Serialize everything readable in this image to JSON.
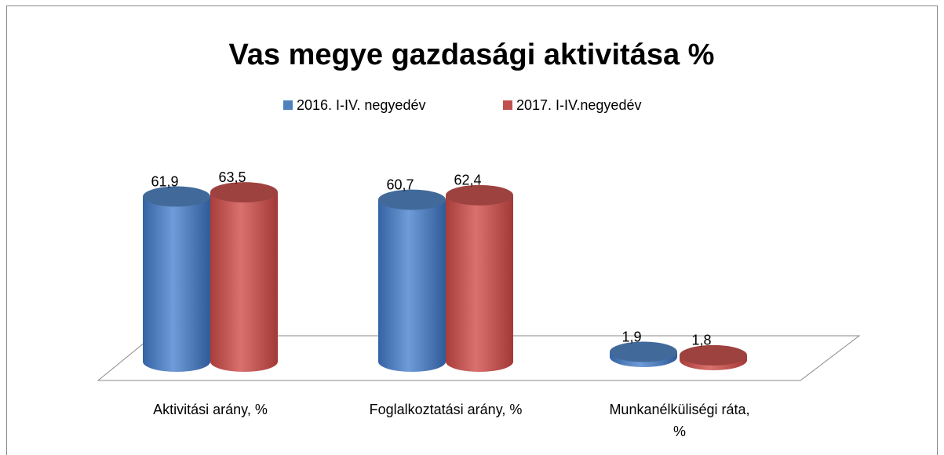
{
  "chart_data": {
    "type": "bar3d-cylinder",
    "title": "Vas megye gazdasági aktivitása %",
    "categories": [
      "Aktivitási arány, %",
      "Foglalkoztatási arány, %",
      "Munkanélküliségi ráta, %"
    ],
    "series": [
      {
        "name": "2016. I-IV. negyedév",
        "color": "#4f81bd",
        "values": [
          61.9,
          60.7,
          1.9
        ],
        "value_labels": [
          "61,9",
          "60,7",
          "1,9"
        ]
      },
      {
        "name": "2017. I-IV.negyedév",
        "color": "#c0504d",
        "values": [
          63.5,
          62.4,
          1.8
        ],
        "value_labels": [
          "63,5",
          "62,4",
          "1,8"
        ]
      }
    ],
    "legend": "top"
  }
}
